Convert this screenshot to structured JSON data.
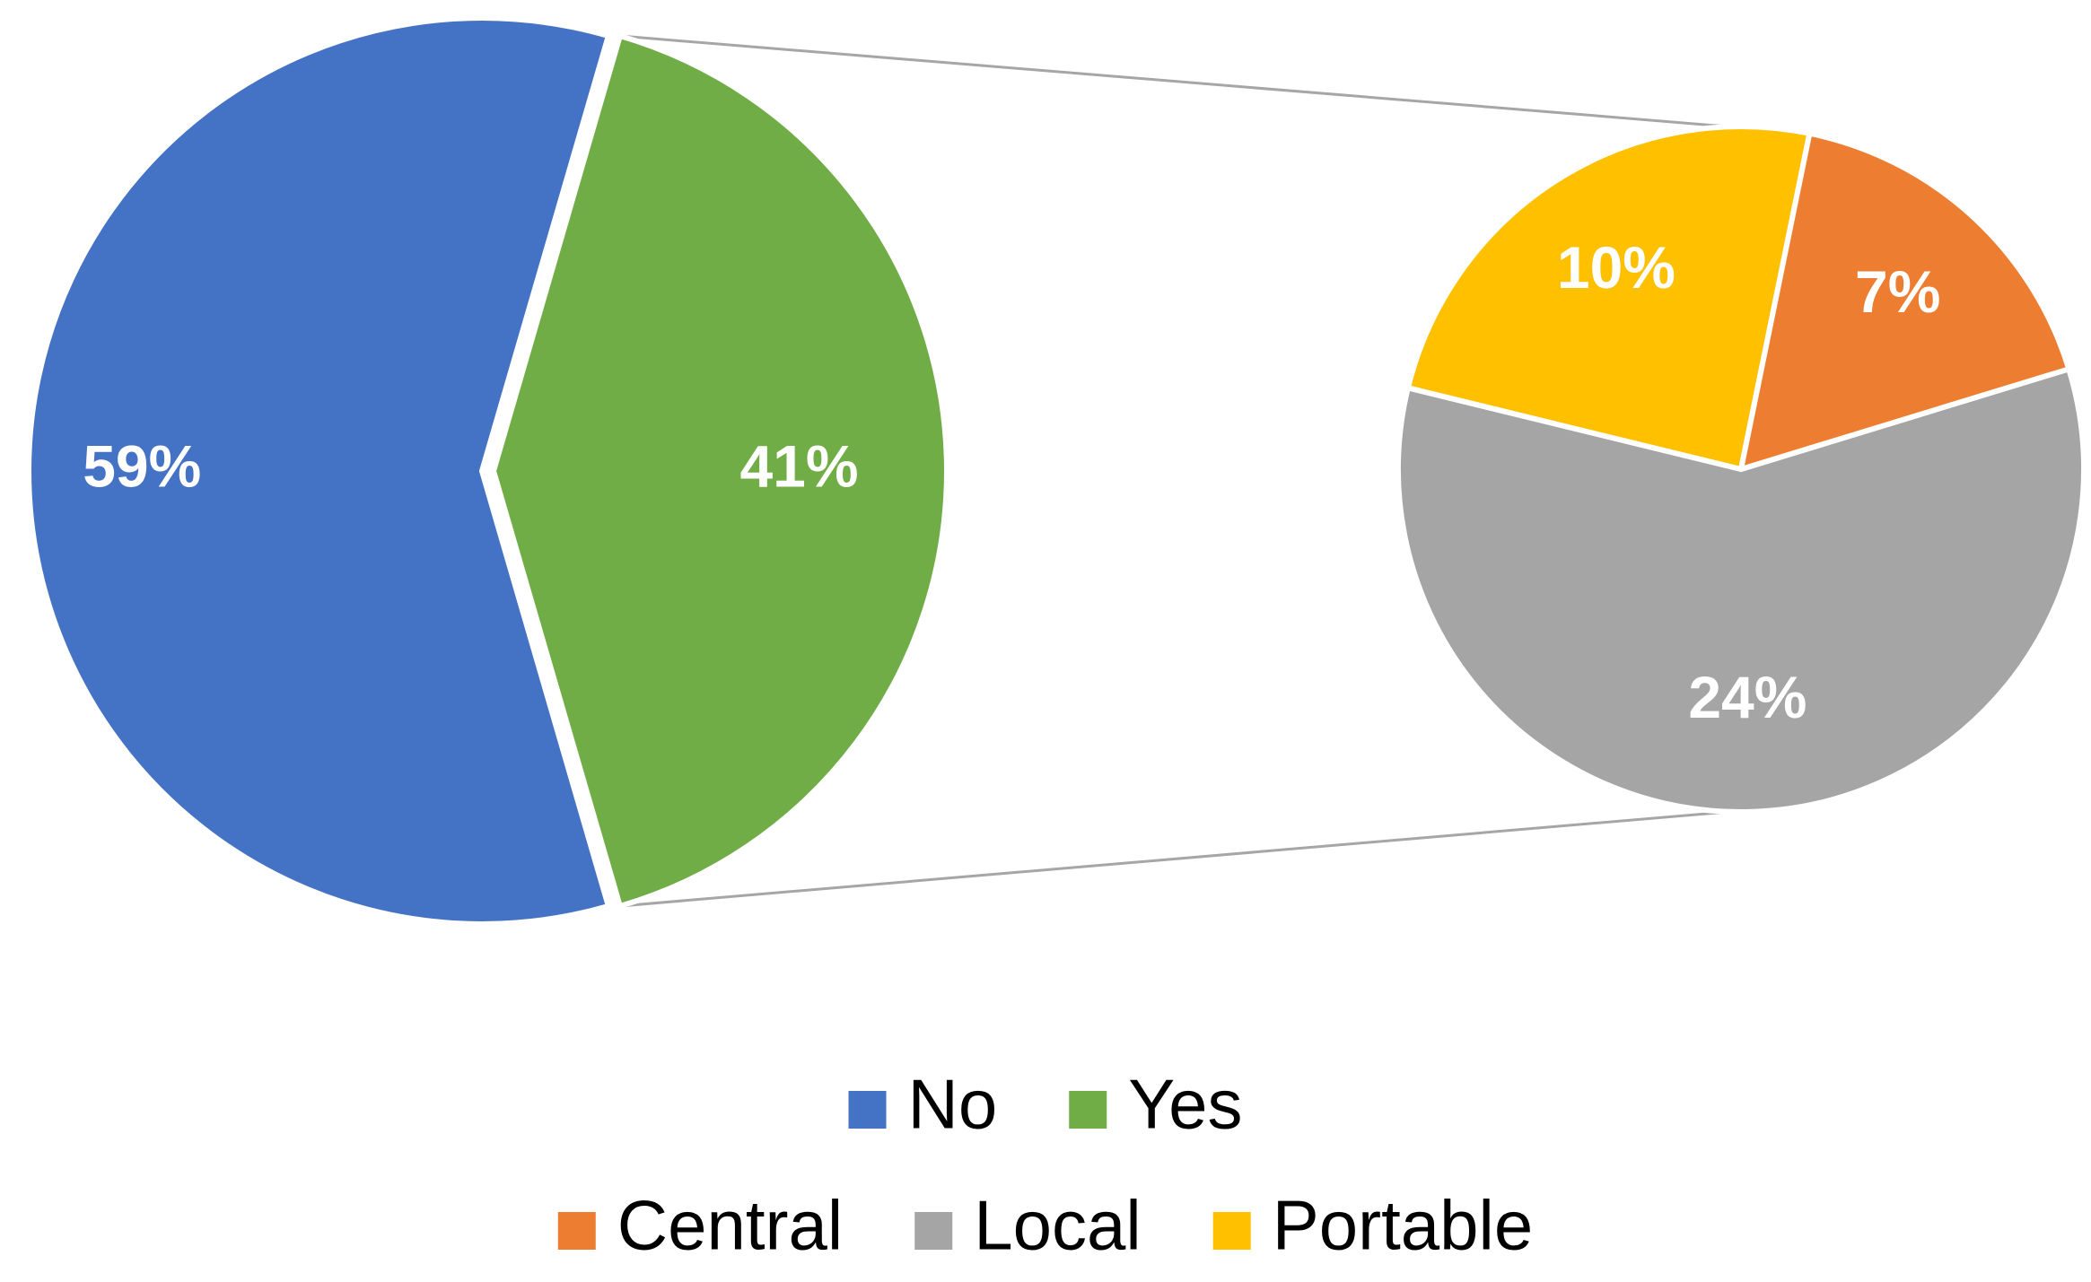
{
  "chart_data": {
    "type": "pie",
    "subtype": "pie-of-pie",
    "title": "",
    "main_pie": {
      "slices": [
        {
          "label": "No",
          "value": 59,
          "display": "59%",
          "color": "#4472C4"
        },
        {
          "label": "Yes",
          "value": 41,
          "display": "41%",
          "color": "#70AD47"
        }
      ]
    },
    "secondary_pie": {
      "breakdown_of": "Yes",
      "slices": [
        {
          "label": "Local",
          "value": 24,
          "display": "24%",
          "color": "#A5A5A5"
        },
        {
          "label": "Portable",
          "value": 10,
          "display": "10%",
          "color": "#FFC000"
        },
        {
          "label": "Central",
          "value": 7,
          "display": "7%",
          "color": "#ED7D31"
        }
      ]
    },
    "legend": {
      "placement": "bottom",
      "rows": [
        [
          {
            "label": "No",
            "color": "#4472C4"
          },
          {
            "label": "Yes",
            "color": "#70AD47"
          }
        ],
        [
          {
            "label": "Central",
            "color": "#ED7D31"
          },
          {
            "label": "Local",
            "color": "#A5A5A5"
          },
          {
            "label": "Portable",
            "color": "#FFC000"
          }
        ]
      ]
    },
    "connector_color": "#A6A6A6"
  }
}
